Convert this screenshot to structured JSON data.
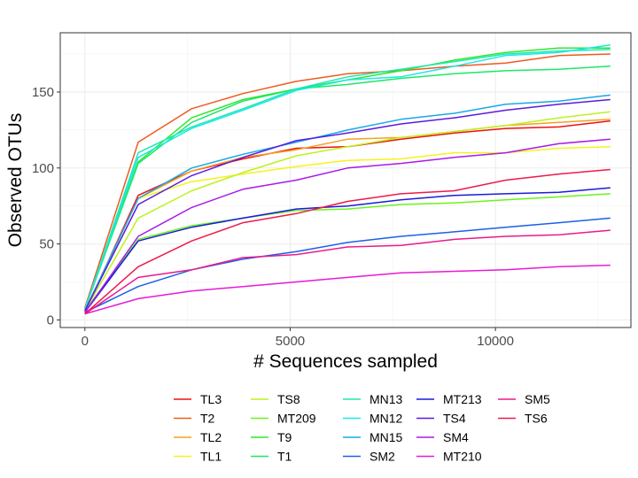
{
  "chart_data": {
    "type": "line",
    "xlabel": "# Sequences sampled",
    "ylabel": "Observed OTUs",
    "xlim": [
      -600,
      13300
    ],
    "ylim": [
      -5,
      189
    ],
    "xticks": [
      0,
      5000,
      10000
    ],
    "xtick_labels": [
      "0",
      "5000",
      "10000"
    ],
    "yticks": [
      0,
      50,
      100,
      150
    ],
    "ytick_labels": [
      "0",
      "50",
      "100",
      "150"
    ],
    "grid": true,
    "legend_position": "bottom",
    "x": [
      0,
      1300,
      2600,
      3850,
      5150,
      6400,
      7700,
      9000,
      10250,
      11550,
      12800
    ],
    "series": [
      {
        "name": "TL3",
        "color": "#ee1111",
        "values": [
          5,
          82,
          98,
          106,
          113,
          114,
          119,
          123,
          126,
          127,
          131
        ]
      },
      {
        "name": "T2",
        "color": "#f05a1e",
        "values": [
          8,
          117,
          139,
          149,
          157,
          162,
          164,
          167,
          169,
          174,
          175
        ]
      },
      {
        "name": "TL2",
        "color": "#f5a11f",
        "values": [
          6,
          80,
          98,
          107,
          112,
          119,
          120,
          124,
          128,
          130,
          132
        ]
      },
      {
        "name": "TL1",
        "color": "#f7f21c",
        "values": [
          5,
          80,
          91,
          96,
          101,
          105,
          106,
          110,
          110,
          113,
          114
        ]
      },
      {
        "name": "TS8",
        "color": "#bdf21c",
        "values": [
          6,
          67,
          85,
          97,
          108,
          114,
          120,
          124,
          128,
          133,
          137
        ]
      },
      {
        "name": "MT209",
        "color": "#6ef21c",
        "values": [
          6,
          53,
          62,
          67,
          72,
          73,
          76,
          77,
          79,
          81,
          83
        ]
      },
      {
        "name": "T9",
        "color": "#2ee82e",
        "values": [
          7,
          104,
          133,
          145,
          152,
          158,
          164,
          171,
          176,
          179,
          179
        ]
      },
      {
        "name": "T1",
        "color": "#1ae866",
        "values": [
          7,
          103,
          130,
          144,
          152,
          155,
          159,
          162,
          164,
          165,
          167
        ]
      },
      {
        "name": "MN13",
        "color": "#1de8b3",
        "values": [
          7,
          110,
          127,
          139,
          152,
          160,
          165,
          170,
          175,
          177,
          178
        ]
      },
      {
        "name": "MN12",
        "color": "#1ae8e8",
        "values": [
          7,
          107,
          126,
          138,
          151,
          158,
          160,
          167,
          174,
          176,
          181
        ]
      },
      {
        "name": "MN15",
        "color": "#1aa8e8",
        "values": [
          6,
          80,
          100,
          109,
          117,
          125,
          132,
          136,
          142,
          144,
          148
        ]
      },
      {
        "name": "SM2",
        "color": "#1a60e8",
        "values": [
          5,
          22,
          33,
          40,
          45,
          51,
          55,
          58,
          61,
          64,
          67
        ]
      },
      {
        "name": "MT213",
        "color": "#1a1ae0",
        "values": [
          5,
          52,
          61,
          67,
          73,
          75,
          79,
          82,
          83,
          84,
          87
        ]
      },
      {
        "name": "TS4",
        "color": "#5a1ae0",
        "values": [
          6,
          76,
          95,
          107,
          118,
          123,
          129,
          133,
          138,
          142,
          145
        ]
      },
      {
        "name": "SM4",
        "color": "#a81ae8",
        "values": [
          5,
          55,
          74,
          86,
          92,
          100,
          103,
          107,
          110,
          116,
          119
        ]
      },
      {
        "name": "MT210",
        "color": "#e81ad6",
        "values": [
          4,
          14,
          19,
          22,
          25,
          28,
          31,
          32,
          33,
          35,
          36
        ]
      },
      {
        "name": "SM5",
        "color": "#ea1a8c",
        "values": [
          4,
          28,
          33,
          41,
          43,
          48,
          49,
          53,
          55,
          56,
          59
        ]
      },
      {
        "name": "TS6",
        "color": "#ee1a4a",
        "values": [
          4,
          35,
          52,
          64,
          70,
          78,
          83,
          85,
          92,
          96,
          99
        ]
      }
    ]
  }
}
